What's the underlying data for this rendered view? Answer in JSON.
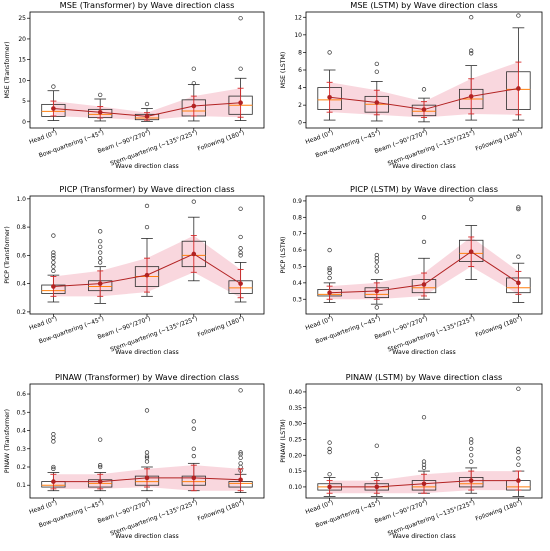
{
  "colors": {
    "box": "#2b2b2b",
    "median": "#ff7f0e",
    "whisker_err": "#d62728",
    "mean_line": "#b22222",
    "mean_point": "#b22222",
    "band": "#f4b6c2",
    "outlier": "#333333",
    "panel_border": "#000000"
  },
  "chart_data": [
    {
      "type": "box",
      "title": "MSE (Transformer) by Wave direction class",
      "xlabel": "Wave direction class",
      "ylabel": "MSE (Transformer)",
      "categories": [
        "Head (0°)",
        "Bow-quartering (~45°)",
        "Beam (~90°/270°)",
        "Stern-quartering (~135°/225°)",
        "Following (180°)"
      ],
      "ylim": [
        -1.5,
        26.5
      ],
      "yticks": [
        0,
        5,
        10,
        15,
        20,
        25
      ],
      "boxes": [
        {
          "whislo": 0.3,
          "q1": 1.3,
          "med": 2.5,
          "q3": 4.2,
          "whishi": 7.5,
          "fliers": [
            8.5
          ]
        },
        {
          "whislo": 0.2,
          "q1": 1.0,
          "med": 1.8,
          "q3": 3.0,
          "whishi": 5.5,
          "fliers": [
            6.5
          ]
        },
        {
          "whislo": 0.1,
          "q1": 0.5,
          "med": 0.9,
          "q3": 1.8,
          "whishi": 3.2,
          "fliers": [
            4.3
          ]
        },
        {
          "whislo": 0.2,
          "q1": 1.4,
          "med": 2.6,
          "q3": 5.3,
          "whishi": 9.0,
          "fliers": [
            9.3,
            12.8
          ]
        },
        {
          "whislo": 0.3,
          "q1": 1.8,
          "med": 4.0,
          "q3": 6.2,
          "whishi": 10.5,
          "fliers": [
            12.8,
            25.0
          ]
        }
      ],
      "mean": [
        3.2,
        2.3,
        1.3,
        3.8,
        4.6
      ],
      "err": [
        1.8,
        1.4,
        0.9,
        2.4,
        3.5
      ]
    },
    {
      "type": "box",
      "title": "MSE (LSTM) by Wave direction class",
      "xlabel": "Wave direction class",
      "ylabel": "MSE (LSTM)",
      "categories": [
        "Head (0°)",
        "Bow-quartering (~45°)",
        "Beam (~90°/270°)",
        "Stern-quartering (~135°/225°)",
        "Following (180°)"
      ],
      "ylim": [
        -0.6,
        12.6
      ],
      "yticks": [
        0,
        2,
        4,
        6,
        8,
        10,
        12
      ],
      "boxes": [
        {
          "whislo": 0.3,
          "q1": 1.5,
          "med": 2.6,
          "q3": 4.0,
          "whishi": 6.0,
          "fliers": [
            8.0
          ]
        },
        {
          "whislo": 0.2,
          "q1": 1.2,
          "med": 2.1,
          "q3": 3.0,
          "whishi": 4.7,
          "fliers": [
            5.8,
            6.7
          ]
        },
        {
          "whislo": 0.1,
          "q1": 0.8,
          "med": 1.3,
          "q3": 2.0,
          "whishi": 2.8,
          "fliers": [
            3.8
          ]
        },
        {
          "whislo": 0.3,
          "q1": 1.6,
          "med": 2.7,
          "q3": 3.8,
          "whishi": 6.5,
          "fliers": [
            7.9,
            8.2,
            12.0
          ]
        },
        {
          "whislo": 0.3,
          "q1": 1.5,
          "med": 3.8,
          "q3": 5.8,
          "whishi": 10.8,
          "fliers": [
            12.2
          ]
        }
      ],
      "mean": [
        2.9,
        2.3,
        1.5,
        3.0,
        3.9
      ],
      "err": [
        1.7,
        1.4,
        0.9,
        2.0,
        3.0
      ]
    },
    {
      "type": "box",
      "title": "PICP (Transformer) by Wave direction class",
      "xlabel": "Wave direction class",
      "ylabel": "PICP (Transformer)",
      "categories": [
        "Head (0°)",
        "Bow-quartering (~45°)",
        "Beam (~90°/270°)",
        "Stern-quartering (~135°/225°)",
        "Following (180°)"
      ],
      "ylim": [
        0.185,
        1.02
      ],
      "yticks": [
        0.2,
        0.4,
        0.6,
        0.8,
        1.0
      ],
      "boxes": [
        {
          "whislo": 0.27,
          "q1": 0.33,
          "med": 0.35,
          "q3": 0.39,
          "whishi": 0.46,
          "fliers": [
            0.49,
            0.52,
            0.55,
            0.58,
            0.6,
            0.62,
            0.74
          ]
        },
        {
          "whislo": 0.26,
          "q1": 0.35,
          "med": 0.38,
          "q3": 0.42,
          "whishi": 0.52,
          "fliers": [
            0.55,
            0.58,
            0.62,
            0.66,
            0.7,
            0.77
          ]
        },
        {
          "whislo": 0.31,
          "q1": 0.38,
          "med": 0.45,
          "q3": 0.52,
          "whishi": 0.72,
          "fliers": [
            0.8,
            0.95
          ]
        },
        {
          "whislo": 0.42,
          "q1": 0.52,
          "med": 0.6,
          "q3": 0.7,
          "whishi": 0.87,
          "fliers": [
            0.98
          ]
        },
        {
          "whislo": 0.27,
          "q1": 0.33,
          "med": 0.37,
          "q3": 0.42,
          "whishi": 0.55,
          "fliers": [
            0.6,
            0.62,
            0.65,
            0.73,
            0.93
          ]
        }
      ],
      "mean": [
        0.38,
        0.4,
        0.46,
        0.61,
        0.4
      ],
      "err": [
        0.07,
        0.09,
        0.12,
        0.13,
        0.1
      ]
    },
    {
      "type": "box",
      "title": "PICP (LSTM) by Wave direction class",
      "xlabel": "Wave direction class",
      "ylabel": "PICP (LSTM)",
      "categories": [
        "Head (0°)",
        "Bow-quartering (~45°)",
        "Beam (~90°/270°)",
        "Stern-quartering (~135°/225°)",
        "Following (180°)"
      ],
      "ylim": [
        0.21,
        0.93
      ],
      "yticks": [
        0.3,
        0.4,
        0.5,
        0.6,
        0.7,
        0.8,
        0.9
      ],
      "boxes": [
        {
          "whislo": 0.28,
          "q1": 0.32,
          "med": 0.33,
          "q3": 0.36,
          "whishi": 0.4,
          "fliers": [
            0.43,
            0.46,
            0.48,
            0.49,
            0.6
          ]
        },
        {
          "whislo": 0.27,
          "q1": 0.31,
          "med": 0.33,
          "q3": 0.37,
          "whishi": 0.42,
          "fliers": [
            0.25,
            0.47,
            0.5,
            0.53,
            0.55,
            0.57
          ]
        },
        {
          "whislo": 0.3,
          "q1": 0.34,
          "med": 0.37,
          "q3": 0.42,
          "whishi": 0.55,
          "fliers": [
            0.65,
            0.8
          ]
        },
        {
          "whislo": 0.42,
          "q1": 0.53,
          "med": 0.58,
          "q3": 0.66,
          "whishi": 0.75,
          "fliers": [
            0.91
          ]
        },
        {
          "whislo": 0.28,
          "q1": 0.34,
          "med": 0.37,
          "q3": 0.43,
          "whishi": 0.52,
          "fliers": [
            0.56,
            0.85,
            0.86
          ]
        }
      ],
      "mean": [
        0.34,
        0.35,
        0.39,
        0.59,
        0.4
      ],
      "err": [
        0.04,
        0.05,
        0.07,
        0.09,
        0.07
      ]
    },
    {
      "type": "box",
      "title": "PINAW (Transformer) by Wave direction class",
      "xlabel": "Wave direction class",
      "ylabel": "PINAW (Transformer)",
      "categories": [
        "Head (0°)",
        "Bow-quartering (~45°)",
        "Beam (~90°/270°)",
        "Stern-quartering (~135°/225°)",
        "Following (180°)"
      ],
      "ylim": [
        0.03,
        0.655
      ],
      "yticks": [
        0.1,
        0.2,
        0.3,
        0.4,
        0.5,
        0.6
      ],
      "boxes": [
        {
          "whislo": 0.07,
          "q1": 0.09,
          "med": 0.1,
          "q3": 0.12,
          "whishi": 0.17,
          "fliers": [
            0.19,
            0.2,
            0.34,
            0.36,
            0.38
          ]
        },
        {
          "whislo": 0.07,
          "q1": 0.09,
          "med": 0.11,
          "q3": 0.13,
          "whishi": 0.17,
          "fliers": [
            0.2,
            0.21,
            0.35
          ]
        },
        {
          "whislo": 0.07,
          "q1": 0.1,
          "med": 0.12,
          "q3": 0.15,
          "whishi": 0.2,
          "fliers": [
            0.23,
            0.25,
            0.26,
            0.28,
            0.51
          ]
        },
        {
          "whislo": 0.07,
          "q1": 0.1,
          "med": 0.12,
          "q3": 0.15,
          "whishi": 0.22,
          "fliers": [
            0.26,
            0.3,
            0.41,
            0.45
          ]
        },
        {
          "whislo": 0.06,
          "q1": 0.09,
          "med": 0.11,
          "q3": 0.12,
          "whishi": 0.16,
          "fliers": [
            0.18,
            0.2,
            0.22,
            0.25,
            0.27,
            0.28,
            0.62
          ]
        }
      ],
      "mean": [
        0.12,
        0.12,
        0.14,
        0.14,
        0.13
      ],
      "err": [
        0.04,
        0.04,
        0.05,
        0.07,
        0.06
      ]
    },
    {
      "type": "box",
      "title": "PINAW (LSTM) by Wave direction class",
      "xlabel": "Wave direction class",
      "ylabel": "PINAW (LSTM)",
      "categories": [
        "Head (0°)",
        "Bow-quartering (~45°)",
        "Beam (~90°/270°)",
        "Stern-quartering (~135°/225°)",
        "Following (180°)"
      ],
      "ylim": [
        0.065,
        0.425
      ],
      "yticks": [
        0.1,
        0.15,
        0.2,
        0.25,
        0.3,
        0.35,
        0.4
      ],
      "boxes": [
        {
          "whislo": 0.07,
          "q1": 0.09,
          "med": 0.1,
          "q3": 0.11,
          "whishi": 0.13,
          "fliers": [
            0.14,
            0.21,
            0.22,
            0.24
          ]
        },
        {
          "whislo": 0.07,
          "q1": 0.09,
          "med": 0.1,
          "q3": 0.11,
          "whishi": 0.13,
          "fliers": [
            0.14,
            0.23
          ]
        },
        {
          "whislo": 0.08,
          "q1": 0.09,
          "med": 0.1,
          "q3": 0.12,
          "whishi": 0.15,
          "fliers": [
            0.16,
            0.17,
            0.18,
            0.32
          ]
        },
        {
          "whislo": 0.08,
          "q1": 0.1,
          "med": 0.11,
          "q3": 0.13,
          "whishi": 0.16,
          "fliers": [
            0.18,
            0.2,
            0.22,
            0.24,
            0.25
          ]
        },
        {
          "whislo": 0.07,
          "q1": 0.09,
          "med": 0.1,
          "q3": 0.12,
          "whishi": 0.15,
          "fliers": [
            0.17,
            0.19,
            0.21,
            0.22,
            0.41
          ]
        }
      ],
      "mean": [
        0.1,
        0.1,
        0.11,
        0.12,
        0.12
      ],
      "err": [
        0.02,
        0.02,
        0.03,
        0.03,
        0.03
      ]
    }
  ]
}
